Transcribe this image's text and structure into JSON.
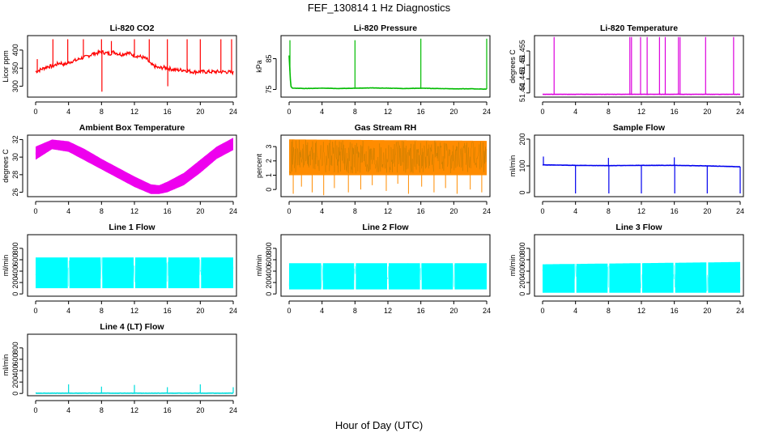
{
  "figure": {
    "title": "FEF_130814  1 Hz Diagnostics",
    "xlabel": "Hour of Day (UTC)"
  },
  "chart_data": [
    {
      "type": "line",
      "title": "Li-820 CO2",
      "ylabel": "Licor ppm",
      "color": "#ff0000",
      "xlim": [
        0,
        24
      ],
      "x_ticks": [
        0,
        4,
        8,
        12,
        16,
        20,
        24
      ],
      "ylim": [
        270,
        440
      ],
      "y_ticks": [
        300,
        350,
        400
      ],
      "series": [
        {
          "x": [
            0,
            0.5,
            1,
            1.5,
            2,
            2.5,
            3,
            3.5,
            4,
            4.5,
            5,
            5.5,
            6,
            6.5,
            7,
            7.5,
            8,
            8.5,
            9,
            9.5,
            10,
            10.5,
            11,
            11.5,
            12,
            12.5,
            13,
            13.5,
            14,
            14.5,
            15,
            15.5,
            16,
            17,
            18,
            19,
            20,
            21,
            22,
            23,
            24
          ],
          "y": [
            340,
            345,
            350,
            355,
            355,
            360,
            365,
            360,
            365,
            370,
            372,
            378,
            380,
            385,
            390,
            392,
            395,
            392,
            390,
            395,
            390,
            388,
            392,
            390,
            385,
            383,
            380,
            375,
            360,
            355,
            350,
            352,
            350,
            345,
            345,
            340,
            340,
            340,
            340,
            340,
            338
          ]
        }
      ],
      "spikes": [
        {
          "x": 0.2,
          "y": 375
        },
        {
          "x": 2.1,
          "y": 430
        },
        {
          "x": 3.9,
          "y": 430
        },
        {
          "x": 5.8,
          "y": 430
        },
        {
          "x": 8.0,
          "y": 430
        },
        {
          "x": 8.05,
          "y": 285
        },
        {
          "x": 9.2,
          "y": 425
        },
        {
          "x": 12.0,
          "y": 430
        },
        {
          "x": 13.8,
          "y": 430
        },
        {
          "x": 16.0,
          "y": 430
        },
        {
          "x": 16.05,
          "y": 300
        },
        {
          "x": 18.4,
          "y": 430
        },
        {
          "x": 20.0,
          "y": 430
        },
        {
          "x": 22.5,
          "y": 430
        },
        {
          "x": 23.8,
          "y": 430
        }
      ]
    },
    {
      "type": "line",
      "title": "Li-820 Pressure",
      "ylabel": "kPa",
      "color": "#00bb00",
      "xlim": [
        0,
        24
      ],
      "x_ticks": [
        0,
        4,
        8,
        12,
        16,
        20,
        24
      ],
      "ylim": [
        72.5,
        92.5
      ],
      "y_ticks": [
        75,
        85
      ],
      "series": [
        {
          "x": [
            0,
            0.2,
            0.4,
            2,
            4,
            6,
            8,
            10,
            12,
            14,
            16,
            18,
            20,
            22,
            24
          ],
          "y": [
            86,
            76,
            75.4,
            75.3,
            75.4,
            75.3,
            75.4,
            75.5,
            75.4,
            75.3,
            75.4,
            75.3,
            75.2,
            75.2,
            75.1
          ]
        }
      ],
      "spikes": [
        {
          "x": 0.1,
          "y": 91
        },
        {
          "x": 8.0,
          "y": 91
        },
        {
          "x": 16.0,
          "y": 91.5
        },
        {
          "x": 24.0,
          "y": 91.5
        }
      ]
    },
    {
      "type": "line",
      "title": "Li-820 Temperature",
      "ylabel": "degrees C",
      "color": "#dd00dd",
      "xlim": [
        0,
        24
      ],
      "x_ticks": [
        0,
        4,
        8,
        12,
        16,
        20,
        24
      ],
      "ylim": [
        51.4385,
        51.4605
      ],
      "y_ticks": [
        51.44,
        51.445,
        51.45,
        51.455
      ],
      "series": [
        {
          "x": [
            0,
            24
          ],
          "y": [
            51.4395,
            51.4395
          ]
        }
      ],
      "spikes": [
        {
          "x": 1.4,
          "y": 51.46
        },
        {
          "x": 10.6,
          "y": 51.46
        },
        {
          "x": 10.8,
          "y": 51.46
        },
        {
          "x": 11.9,
          "y": 51.46
        },
        {
          "x": 12.7,
          "y": 51.46
        },
        {
          "x": 14.2,
          "y": 51.46
        },
        {
          "x": 14.9,
          "y": 51.46
        },
        {
          "x": 16.5,
          "y": 51.46
        },
        {
          "x": 16.7,
          "y": 51.46
        },
        {
          "x": 19.8,
          "y": 51.46
        },
        {
          "x": 23.2,
          "y": 51.46
        }
      ]
    },
    {
      "type": "line",
      "title": "Ambient Box Temperature",
      "ylabel": "degrees C",
      "color": "#ee00ee",
      "xlim": [
        0,
        24
      ],
      "x_ticks": [
        0,
        4,
        8,
        12,
        16,
        20,
        24
      ],
      "ylim": [
        25.5,
        32.5
      ],
      "y_ticks": [
        26,
        28,
        30,
        32
      ],
      "band": {
        "x": [
          0,
          2,
          4,
          6,
          8,
          10,
          12,
          14,
          15,
          16,
          18,
          20,
          22,
          24
        ],
        "lower": [
          29.7,
          30.9,
          30.6,
          29.6,
          28.6,
          27.6,
          26.6,
          25.8,
          25.8,
          26.0,
          26.8,
          28.2,
          29.8,
          30.8
        ],
        "upper": [
          31.2,
          32.0,
          31.8,
          30.9,
          29.8,
          28.8,
          27.8,
          26.9,
          26.8,
          27.2,
          28.2,
          29.7,
          31.2,
          32.2
        ]
      }
    },
    {
      "type": "area",
      "title": "Gas Stream RH",
      "ylabel": "percent",
      "color": "#ff8c00",
      "dot_color": "#aa7700",
      "xlim": [
        0,
        24
      ],
      "x_ticks": [
        0,
        4,
        8,
        12,
        16,
        20,
        24
      ],
      "ylim": [
        -0.5,
        3.8
      ],
      "y_ticks": [
        0,
        1,
        2,
        3
      ],
      "band": {
        "x": [
          0,
          24
        ],
        "lower": [
          1.0,
          1.0
        ],
        "upper": [
          3.5,
          3.4
        ]
      },
      "lows": [
        {
          "x": 0.5,
          "y": -0.3
        },
        {
          "x": 1.5,
          "y": 0.2
        },
        {
          "x": 2.8,
          "y": -0.2
        },
        {
          "x": 4.2,
          "y": -0.4
        },
        {
          "x": 5.5,
          "y": 0.1
        },
        {
          "x": 7.2,
          "y": -0.2
        },
        {
          "x": 8.7,
          "y": 0.0
        },
        {
          "x": 10.1,
          "y": 0.3
        },
        {
          "x": 11.8,
          "y": -0.1
        },
        {
          "x": 13.2,
          "y": 0.4
        },
        {
          "x": 14.5,
          "y": -0.3
        },
        {
          "x": 16.1,
          "y": 0.2
        },
        {
          "x": 17.6,
          "y": -0.2
        },
        {
          "x": 19.0,
          "y": 0.1
        },
        {
          "x": 20.4,
          "y": -0.3
        },
        {
          "x": 22.0,
          "y": 0.0
        },
        {
          "x": 23.4,
          "y": -0.2
        }
      ]
    },
    {
      "type": "line",
      "title": "Sample Flow",
      "ylabel": "ml/min",
      "color": "#0000ee",
      "xlim": [
        0,
        24
      ],
      "x_ticks": [
        0,
        4,
        8,
        12,
        16,
        20,
        24
      ],
      "ylim": [
        -15,
        215
      ],
      "y_ticks": [
        0,
        100,
        200
      ],
      "series": [
        {
          "x": [
            0,
            4,
            8,
            12,
            16,
            20,
            24
          ],
          "y": [
            104,
            102,
            101,
            102,
            102,
            100,
            97
          ]
        }
      ],
      "spikes": [
        {
          "x": 0.1,
          "y": 135
        },
        {
          "x": 8.0,
          "y": 130
        },
        {
          "x": 16.0,
          "y": 132
        },
        {
          "x": 4.0,
          "y": -3
        },
        {
          "x": 8.05,
          "y": -3
        },
        {
          "x": 12.0,
          "y": -3
        },
        {
          "x": 16.05,
          "y": -3
        },
        {
          "x": 20.0,
          "y": -3
        },
        {
          "x": 24.0,
          "y": -3
        }
      ]
    },
    {
      "type": "area",
      "title": "Line 1 Flow",
      "ylabel": "ml/min",
      "color": "#00ffff",
      "xlim": [
        0,
        24
      ],
      "x_ticks": [
        0,
        4,
        8,
        12,
        16,
        20,
        24
      ],
      "ylim": [
        -40,
        1040
      ],
      "y_ticks": [
        0,
        200,
        400,
        600,
        800
      ],
      "band": {
        "x": [
          0,
          24
        ],
        "lower": [
          100,
          100
        ],
        "upper": [
          640,
          640
        ]
      },
      "gaps": [
        4,
        8,
        12,
        16,
        20
      ]
    },
    {
      "type": "area",
      "title": "Line 2 Flow",
      "ylabel": "ml/min",
      "color": "#00ffff",
      "xlim": [
        0,
        24
      ],
      "x_ticks": [
        0,
        4,
        8,
        12,
        16,
        20,
        24
      ],
      "ylim": [
        -40,
        1040
      ],
      "y_ticks": [
        0,
        200,
        400,
        600,
        800
      ],
      "band": {
        "x": [
          0,
          24
        ],
        "lower": [
          80,
          80
        ],
        "upper": [
          540,
          540
        ]
      },
      "gaps": [
        4,
        8,
        12,
        16,
        20
      ]
    },
    {
      "type": "area",
      "title": "Line 3 Flow",
      "ylabel": "ml/min",
      "color": "#00ffff",
      "xlim": [
        0,
        24
      ],
      "x_ticks": [
        0,
        4,
        8,
        12,
        16,
        20,
        24
      ],
      "ylim": [
        -40,
        1040
      ],
      "y_ticks": [
        0,
        200,
        400,
        600,
        800
      ],
      "band": {
        "x": [
          0,
          24
        ],
        "lower": [
          20,
          20
        ],
        "upper": [
          520,
          560
        ]
      },
      "gaps": [
        4,
        8,
        12,
        16,
        20
      ]
    },
    {
      "type": "line",
      "title": "Line 4 (LT) Flow",
      "ylabel": "ml/min",
      "color": "#00dddd",
      "xlim": [
        0,
        24
      ],
      "x_ticks": [
        0,
        4,
        8,
        12,
        16,
        20,
        24
      ],
      "ylim": [
        -40,
        1040
      ],
      "y_ticks": [
        0,
        200,
        400,
        600,
        800
      ],
      "series": [
        {
          "x": [
            0,
            24
          ],
          "y": [
            5,
            5
          ]
        }
      ],
      "spikes": [
        {
          "x": 4.0,
          "y": 160
        },
        {
          "x": 8.0,
          "y": 120
        },
        {
          "x": 12.0,
          "y": 150
        },
        {
          "x": 16.0,
          "y": 110
        },
        {
          "x": 20.0,
          "y": 160
        },
        {
          "x": 24.0,
          "y": 110
        }
      ]
    }
  ]
}
